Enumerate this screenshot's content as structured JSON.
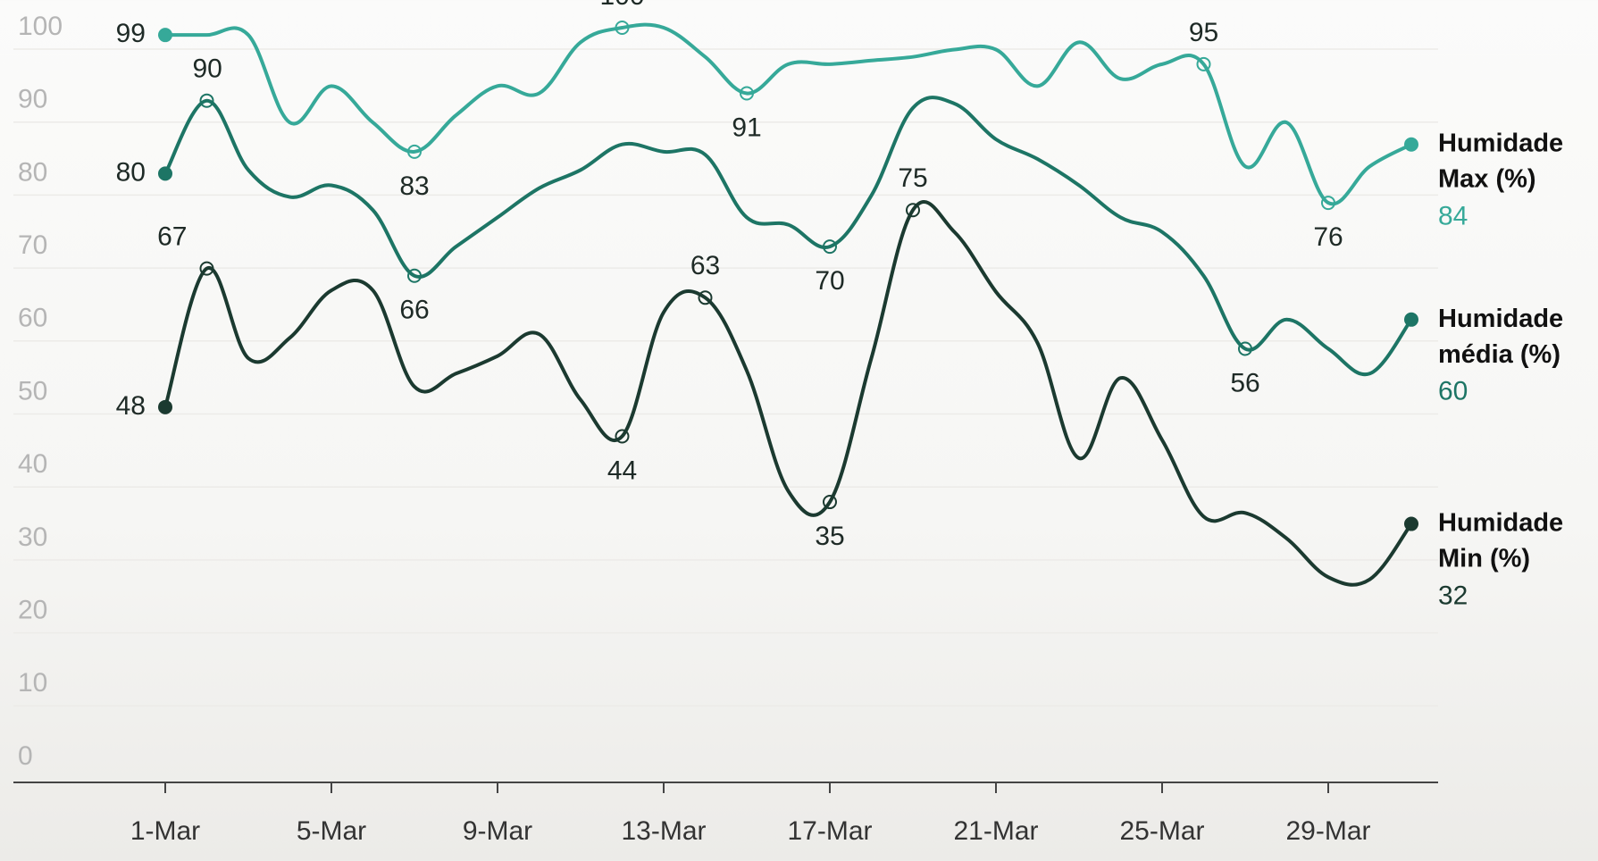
{
  "chart_data": {
    "type": "line",
    "categories": [
      "1-Mar",
      null,
      null,
      null,
      "5-Mar",
      null,
      null,
      null,
      "9-Mar",
      null,
      null,
      null,
      "13-Mar",
      null,
      null,
      null,
      "17-Mar",
      null,
      null,
      null,
      "21-Mar",
      null,
      null,
      null,
      "25-Mar",
      null,
      null,
      null,
      "29-Mar",
      null,
      null
    ],
    "series": [
      {
        "name": "Humidade Max (%)",
        "color": "#36a999",
        "values": [
          99,
          99,
          99,
          87,
          92,
          87,
          83,
          88,
          92,
          91,
          98,
          100,
          100,
          96,
          91,
          95,
          95,
          95.5,
          96,
          97,
          97,
          92,
          98,
          93,
          95,
          95,
          81,
          87,
          76,
          81,
          84
        ],
        "value_labels": [
          "99",
          null,
          null,
          null,
          null,
          null,
          "83",
          null,
          null,
          null,
          null,
          "100",
          null,
          null,
          "91",
          null,
          null,
          null,
          null,
          null,
          null,
          null,
          null,
          null,
          null,
          "95",
          null,
          null,
          "76",
          null,
          "84"
        ]
      },
      {
        "name": "Humidade média (%)",
        "color": "#1d7565",
        "values": [
          80,
          90,
          80.5,
          76.8,
          78.4,
          75,
          66,
          70,
          74,
          78,
          80.5,
          84,
          83,
          82.6,
          74,
          73,
          70,
          77,
          89,
          89.6,
          84.7,
          82,
          78.4,
          74,
          72,
          66,
          56,
          60,
          56,
          52.6,
          60
        ],
        "value_labels": [
          "80",
          "90",
          null,
          null,
          null,
          null,
          "66",
          null,
          null,
          null,
          null,
          null,
          null,
          null,
          null,
          null,
          "70",
          null,
          null,
          null,
          null,
          null,
          null,
          null,
          null,
          null,
          "56",
          null,
          null,
          null,
          "60"
        ]
      },
      {
        "name": "Humidade Min (%)",
        "color": "#1b3a30",
        "values": [
          48,
          67,
          54.7,
          57.5,
          64,
          64,
          50.8,
          52.6,
          55,
          58,
          49,
          44,
          61,
          63,
          53,
          36.5,
          35,
          54.7,
          75,
          72,
          63.8,
          56.8,
          41,
          52,
          43.5,
          33,
          33.5,
          30,
          24.7,
          24.4,
          32
        ],
        "value_labels": [
          "48",
          "67",
          null,
          null,
          null,
          null,
          null,
          null,
          null,
          null,
          null,
          "44",
          null,
          "63",
          null,
          null,
          "35",
          null,
          "75",
          null,
          null,
          null,
          null,
          null,
          null,
          null,
          null,
          null,
          null,
          null,
          "32"
        ]
      }
    ],
    "ylim": [
      0,
      100
    ],
    "yticks": [
      0,
      10,
      20,
      30,
      40,
      50,
      60,
      70,
      80,
      90,
      100
    ],
    "grid": true
  }
}
